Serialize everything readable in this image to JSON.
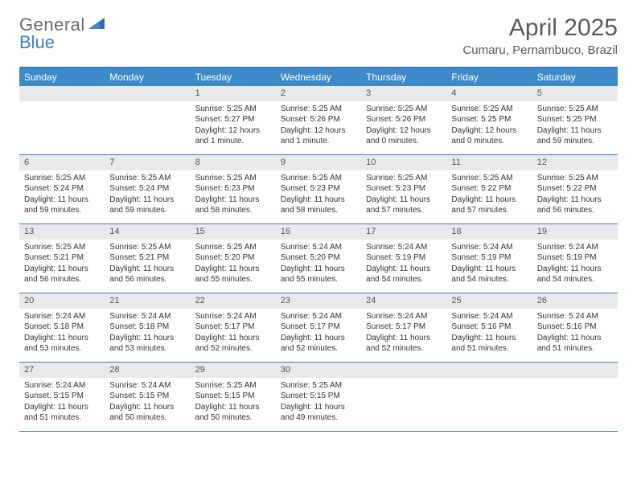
{
  "logo": {
    "general": "General",
    "blue": "Blue"
  },
  "title": {
    "month": "April 2025",
    "location": "Cumaru, Pernambuco, Brazil"
  },
  "colors": {
    "header_bg": "#3d8ac9",
    "header_border": "#3a7fc4",
    "daynum_bg": "#e9e9e9",
    "text": "#333333",
    "muted": "#5a5a5a"
  },
  "day_names": [
    "Sunday",
    "Monday",
    "Tuesday",
    "Wednesday",
    "Thursday",
    "Friday",
    "Saturday"
  ],
  "weeks": [
    [
      {
        "n": "",
        "sr": "",
        "ss": "",
        "dl": ""
      },
      {
        "n": "",
        "sr": "",
        "ss": "",
        "dl": ""
      },
      {
        "n": "1",
        "sr": "Sunrise: 5:25 AM",
        "ss": "Sunset: 5:27 PM",
        "dl": "Daylight: 12 hours and 1 minute."
      },
      {
        "n": "2",
        "sr": "Sunrise: 5:25 AM",
        "ss": "Sunset: 5:26 PM",
        "dl": "Daylight: 12 hours and 1 minute."
      },
      {
        "n": "3",
        "sr": "Sunrise: 5:25 AM",
        "ss": "Sunset: 5:26 PM",
        "dl": "Daylight: 12 hours and 0 minutes."
      },
      {
        "n": "4",
        "sr": "Sunrise: 5:25 AM",
        "ss": "Sunset: 5:25 PM",
        "dl": "Daylight: 12 hours and 0 minutes."
      },
      {
        "n": "5",
        "sr": "Sunrise: 5:25 AM",
        "ss": "Sunset: 5:25 PM",
        "dl": "Daylight: 11 hours and 59 minutes."
      }
    ],
    [
      {
        "n": "6",
        "sr": "Sunrise: 5:25 AM",
        "ss": "Sunset: 5:24 PM",
        "dl": "Daylight: 11 hours and 59 minutes."
      },
      {
        "n": "7",
        "sr": "Sunrise: 5:25 AM",
        "ss": "Sunset: 5:24 PM",
        "dl": "Daylight: 11 hours and 59 minutes."
      },
      {
        "n": "8",
        "sr": "Sunrise: 5:25 AM",
        "ss": "Sunset: 5:23 PM",
        "dl": "Daylight: 11 hours and 58 minutes."
      },
      {
        "n": "9",
        "sr": "Sunrise: 5:25 AM",
        "ss": "Sunset: 5:23 PM",
        "dl": "Daylight: 11 hours and 58 minutes."
      },
      {
        "n": "10",
        "sr": "Sunrise: 5:25 AM",
        "ss": "Sunset: 5:23 PM",
        "dl": "Daylight: 11 hours and 57 minutes."
      },
      {
        "n": "11",
        "sr": "Sunrise: 5:25 AM",
        "ss": "Sunset: 5:22 PM",
        "dl": "Daylight: 11 hours and 57 minutes."
      },
      {
        "n": "12",
        "sr": "Sunrise: 5:25 AM",
        "ss": "Sunset: 5:22 PM",
        "dl": "Daylight: 11 hours and 56 minutes."
      }
    ],
    [
      {
        "n": "13",
        "sr": "Sunrise: 5:25 AM",
        "ss": "Sunset: 5:21 PM",
        "dl": "Daylight: 11 hours and 56 minutes."
      },
      {
        "n": "14",
        "sr": "Sunrise: 5:25 AM",
        "ss": "Sunset: 5:21 PM",
        "dl": "Daylight: 11 hours and 56 minutes."
      },
      {
        "n": "15",
        "sr": "Sunrise: 5:25 AM",
        "ss": "Sunset: 5:20 PM",
        "dl": "Daylight: 11 hours and 55 minutes."
      },
      {
        "n": "16",
        "sr": "Sunrise: 5:24 AM",
        "ss": "Sunset: 5:20 PM",
        "dl": "Daylight: 11 hours and 55 minutes."
      },
      {
        "n": "17",
        "sr": "Sunrise: 5:24 AM",
        "ss": "Sunset: 5:19 PM",
        "dl": "Daylight: 11 hours and 54 minutes."
      },
      {
        "n": "18",
        "sr": "Sunrise: 5:24 AM",
        "ss": "Sunset: 5:19 PM",
        "dl": "Daylight: 11 hours and 54 minutes."
      },
      {
        "n": "19",
        "sr": "Sunrise: 5:24 AM",
        "ss": "Sunset: 5:19 PM",
        "dl": "Daylight: 11 hours and 54 minutes."
      }
    ],
    [
      {
        "n": "20",
        "sr": "Sunrise: 5:24 AM",
        "ss": "Sunset: 5:18 PM",
        "dl": "Daylight: 11 hours and 53 minutes."
      },
      {
        "n": "21",
        "sr": "Sunrise: 5:24 AM",
        "ss": "Sunset: 5:18 PM",
        "dl": "Daylight: 11 hours and 53 minutes."
      },
      {
        "n": "22",
        "sr": "Sunrise: 5:24 AM",
        "ss": "Sunset: 5:17 PM",
        "dl": "Daylight: 11 hours and 52 minutes."
      },
      {
        "n": "23",
        "sr": "Sunrise: 5:24 AM",
        "ss": "Sunset: 5:17 PM",
        "dl": "Daylight: 11 hours and 52 minutes."
      },
      {
        "n": "24",
        "sr": "Sunrise: 5:24 AM",
        "ss": "Sunset: 5:17 PM",
        "dl": "Daylight: 11 hours and 52 minutes."
      },
      {
        "n": "25",
        "sr": "Sunrise: 5:24 AM",
        "ss": "Sunset: 5:16 PM",
        "dl": "Daylight: 11 hours and 51 minutes."
      },
      {
        "n": "26",
        "sr": "Sunrise: 5:24 AM",
        "ss": "Sunset: 5:16 PM",
        "dl": "Daylight: 11 hours and 51 minutes."
      }
    ],
    [
      {
        "n": "27",
        "sr": "Sunrise: 5:24 AM",
        "ss": "Sunset: 5:15 PM",
        "dl": "Daylight: 11 hours and 51 minutes."
      },
      {
        "n": "28",
        "sr": "Sunrise: 5:24 AM",
        "ss": "Sunset: 5:15 PM",
        "dl": "Daylight: 11 hours and 50 minutes."
      },
      {
        "n": "29",
        "sr": "Sunrise: 5:25 AM",
        "ss": "Sunset: 5:15 PM",
        "dl": "Daylight: 11 hours and 50 minutes."
      },
      {
        "n": "30",
        "sr": "Sunrise: 5:25 AM",
        "ss": "Sunset: 5:15 PM",
        "dl": "Daylight: 11 hours and 49 minutes."
      },
      {
        "n": "",
        "sr": "",
        "ss": "",
        "dl": ""
      },
      {
        "n": "",
        "sr": "",
        "ss": "",
        "dl": ""
      },
      {
        "n": "",
        "sr": "",
        "ss": "",
        "dl": ""
      }
    ]
  ]
}
